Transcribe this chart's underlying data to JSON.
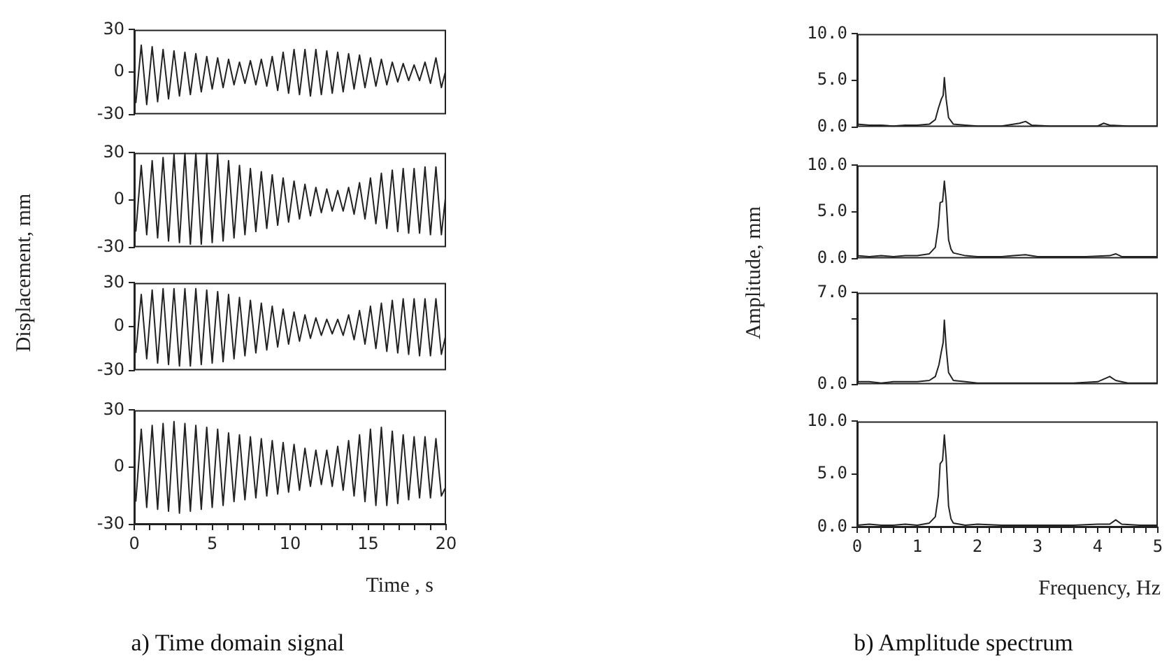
{
  "chart_data": [
    {
      "type": "line",
      "color": "#222222",
      "tick_labels": "y",
      "xlim": [
        0,
        20
      ],
      "ylim": [
        -30,
        30
      ],
      "yticks": [
        -30,
        0,
        30
      ],
      "x": [
        0.1,
        0.45,
        0.8,
        1.15,
        1.5,
        1.85,
        2.2,
        2.55,
        2.9,
        3.25,
        3.6,
        3.95,
        4.3,
        4.65,
        5,
        5.35,
        5.7,
        6.05,
        6.4,
        6.75,
        7.1,
        7.45,
        7.8,
        8.15,
        8.5,
        8.85,
        9.2,
        9.55,
        9.9,
        10.25,
        10.6,
        10.95,
        11.3,
        11.65,
        12,
        12.35,
        12.7,
        13.05,
        13.4,
        13.75,
        14.1,
        14.45,
        14.8,
        15.15,
        15.5,
        15.85,
        16.2,
        16.55,
        16.9,
        17.25,
        17.6,
        17.95,
        18.3,
        18.65,
        19,
        19.35,
        19.7,
        20
      ],
      "values": [
        -22,
        19,
        -23,
        18,
        -21,
        16,
        -19,
        15,
        -17,
        14,
        -16,
        13,
        -14,
        11,
        -12,
        10,
        -11,
        9,
        -9,
        7,
        -8,
        8,
        -9,
        9,
        -10,
        11,
        -13,
        14,
        -15,
        16,
        -16,
        16,
        -17,
        16,
        -16,
        15,
        -15,
        14,
        -14,
        13,
        -12,
        12,
        -11,
        10,
        -10,
        9,
        -9,
        7,
        -7,
        6,
        -6,
        5,
        -6,
        7,
        -8,
        10,
        -11,
        2
      ]
    },
    {
      "type": "line",
      "color": "#222222",
      "tick_labels": "y",
      "xlim": [
        0,
        20
      ],
      "ylim": [
        -30,
        30
      ],
      "yticks": [
        -30,
        0,
        30
      ],
      "ylabel": "Displacement, mm",
      "x": [
        0.1,
        0.45,
        0.8,
        1.15,
        1.5,
        1.85,
        2.2,
        2.55,
        2.9,
        3.25,
        3.6,
        3.95,
        4.3,
        4.65,
        5,
        5.35,
        5.7,
        6.05,
        6.4,
        6.75,
        7.1,
        7.45,
        7.8,
        8.15,
        8.5,
        8.85,
        9.2,
        9.55,
        9.9,
        10.25,
        10.6,
        10.95,
        11.3,
        11.65,
        12,
        12.35,
        12.7,
        13.05,
        13.4,
        13.75,
        14.1,
        14.45,
        14.8,
        15.15,
        15.5,
        15.85,
        16.2,
        16.55,
        16.9,
        17.25,
        17.6,
        17.95,
        18.3,
        18.65,
        19,
        19.35,
        19.7,
        20
      ],
      "values": [
        -20,
        22,
        -22,
        25,
        -24,
        27,
        -26,
        29,
        -27,
        30,
        -28,
        30,
        -28,
        30,
        -27,
        29,
        -26,
        25,
        -24,
        22,
        -22,
        20,
        -20,
        18,
        -18,
        16,
        -16,
        14,
        -14,
        12,
        -12,
        10,
        -10,
        8,
        -8,
        7,
        -7,
        6,
        -7,
        8,
        -9,
        11,
        -12,
        14,
        -15,
        17,
        -18,
        19,
        -20,
        20,
        -21,
        20,
        -21,
        21,
        -22,
        21,
        -22,
        5
      ]
    },
    {
      "type": "line",
      "color": "#222222",
      "tick_labels": "y",
      "xlim": [
        0,
        20
      ],
      "ylim": [
        -30,
        30
      ],
      "yticks": [
        -30,
        0,
        30
      ],
      "x": [
        0.1,
        0.45,
        0.8,
        1.15,
        1.5,
        1.85,
        2.2,
        2.55,
        2.9,
        3.25,
        3.6,
        3.95,
        4.3,
        4.65,
        5,
        5.35,
        5.7,
        6.05,
        6.4,
        6.75,
        7.1,
        7.45,
        7.8,
        8.15,
        8.5,
        8.85,
        9.2,
        9.55,
        9.9,
        10.25,
        10.6,
        10.95,
        11.3,
        11.65,
        12,
        12.35,
        12.7,
        13.05,
        13.4,
        13.75,
        14.1,
        14.45,
        14.8,
        15.15,
        15.5,
        15.85,
        16.2,
        16.55,
        16.9,
        17.25,
        17.6,
        17.95,
        18.3,
        18.65,
        19,
        19.35,
        19.7,
        20
      ],
      "values": [
        -18,
        22,
        -22,
        25,
        -25,
        26,
        -26,
        26,
        -27,
        26,
        -27,
        26,
        -26,
        25,
        -25,
        24,
        -24,
        22,
        -22,
        20,
        -20,
        18,
        -18,
        16,
        -16,
        14,
        -14,
        12,
        -12,
        10,
        -10,
        8,
        -8,
        6,
        -6,
        5,
        -5,
        5,
        -6,
        8,
        -9,
        11,
        -12,
        14,
        -15,
        16,
        -17,
        18,
        -18,
        19,
        -19,
        19,
        -20,
        19,
        -20,
        19,
        -19,
        -5
      ]
    },
    {
      "type": "line",
      "color": "#222222",
      "xlim": [
        0,
        20
      ],
      "ylim": [
        -30,
        30
      ],
      "yticks": [
        -30,
        0,
        30
      ],
      "xlabel": "Time , s",
      "annotations": [
        "a) Time domain signal"
      ],
      "xticks": [
        0,
        {
          "value": 1,
          "label": null
        },
        {
          "value": 2,
          "label": null
        },
        {
          "value": 3,
          "label": null
        },
        {
          "value": 4,
          "label": null
        },
        5,
        {
          "value": 6,
          "label": null
        },
        {
          "value": 7,
          "label": null
        },
        {
          "value": 8,
          "label": null
        },
        {
          "value": 9,
          "label": null
        },
        10,
        {
          "value": 11,
          "label": null
        },
        {
          "value": 12,
          "label": null
        },
        {
          "value": 13,
          "label": null
        },
        {
          "value": 14,
          "label": null
        },
        15,
        {
          "value": 16,
          "label": null
        },
        {
          "value": 17,
          "label": null
        },
        {
          "value": 18,
          "label": null
        },
        {
          "value": 19,
          "label": null
        },
        20
      ],
      "x": [
        0.1,
        0.45,
        0.8,
        1.15,
        1.5,
        1.85,
        2.2,
        2.55,
        2.9,
        3.25,
        3.6,
        3.95,
        4.3,
        4.65,
        5,
        5.35,
        5.7,
        6.05,
        6.4,
        6.75,
        7.1,
        7.45,
        7.8,
        8.15,
        8.5,
        8.85,
        9.2,
        9.55,
        9.9,
        10.25,
        10.6,
        10.95,
        11.3,
        11.65,
        12,
        12.35,
        12.7,
        13.05,
        13.4,
        13.75,
        14.1,
        14.45,
        14.8,
        15.15,
        15.5,
        15.85,
        16.2,
        16.55,
        16.9,
        17.25,
        17.6,
        17.95,
        18.3,
        18.65,
        19,
        19.35,
        19.7,
        20
      ],
      "values": [
        -18,
        20,
        -21,
        22,
        -22,
        23,
        -23,
        24,
        -24,
        23,
        -23,
        22,
        -22,
        21,
        -21,
        20,
        -20,
        18,
        -18,
        17,
        -17,
        16,
        -16,
        15,
        -15,
        14,
        -14,
        13,
        -13,
        12,
        -12,
        10,
        -10,
        9,
        -9,
        9,
        -10,
        11,
        -12,
        14,
        -15,
        17,
        -18,
        20,
        -20,
        21,
        -20,
        19,
        -19,
        17,
        -17,
        16,
        -16,
        16,
        -16,
        15,
        -15,
        -10
      ]
    },
    {
      "type": "line",
      "color": "#222222",
      "tick_labels": "y",
      "xlim": [
        0,
        5
      ],
      "ylim": [
        0,
        10
      ],
      "yticks": [
        {
          "value": 0,
          "label": "0.0"
        },
        {
          "value": 5,
          "label": "5.0"
        },
        {
          "value": 10,
          "label": "10.0"
        }
      ],
      "x": [
        0,
        0.2,
        0.4,
        0.6,
        0.8,
        1,
        1.2,
        1.3,
        1.35,
        1.4,
        1.43,
        1.45,
        1.48,
        1.52,
        1.6,
        1.8,
        2,
        2.4,
        2.7,
        2.8,
        2.9,
        3.2,
        3.6,
        4,
        4.1,
        4.2,
        4.5,
        5
      ],
      "values": [
        0.3,
        0.2,
        0.2,
        0.1,
        0.2,
        0.2,
        0.3,
        0.8,
        2,
        3,
        3.4,
        5.3,
        3,
        1,
        0.3,
        0.2,
        0.1,
        0.1,
        0.4,
        0.6,
        0.2,
        0.1,
        0.1,
        0.1,
        0.4,
        0.2,
        0.1,
        0.1
      ]
    },
    {
      "type": "line",
      "color": "#222222",
      "tick_labels": "y",
      "xlim": [
        0,
        5
      ],
      "ylim": [
        0,
        10
      ],
      "yticks": [
        {
          "value": 0,
          "label": "0.0"
        },
        {
          "value": 5,
          "label": "5.0"
        },
        {
          "value": 10,
          "label": "10.0"
        }
      ],
      "ylabel": "Amplitude, mm",
      "x": [
        0,
        0.2,
        0.4,
        0.6,
        0.8,
        1,
        1.2,
        1.3,
        1.35,
        1.38,
        1.42,
        1.45,
        1.48,
        1.52,
        1.56,
        1.6,
        1.8,
        2,
        2.4,
        2.6,
        2.8,
        3,
        3.4,
        3.8,
        4.2,
        4.3,
        4.4,
        4.7,
        5
      ],
      "values": [
        0.3,
        0.2,
        0.3,
        0.2,
        0.3,
        0.3,
        0.5,
        1.2,
        3.5,
        6,
        6.1,
        8.3,
        6.2,
        2,
        1,
        0.6,
        0.3,
        0.2,
        0.2,
        0.3,
        0.4,
        0.2,
        0.2,
        0.2,
        0.3,
        0.5,
        0.2,
        0.2,
        0.2
      ]
    },
    {
      "type": "line",
      "color": "#222222",
      "tick_labels": "y",
      "xlim": [
        0,
        5
      ],
      "ylim": [
        0,
        7
      ],
      "yticks": [
        {
          "value": 0,
          "label": "0.0"
        },
        {
          "value": 5,
          "label": null
        },
        {
          "value": 7,
          "label": "7.0"
        }
      ],
      "x": [
        0,
        0.2,
        0.4,
        0.6,
        0.8,
        1,
        1.2,
        1.3,
        1.36,
        1.4,
        1.43,
        1.45,
        1.48,
        1.52,
        1.6,
        1.8,
        2,
        2.4,
        2.8,
        3.2,
        3.6,
        4,
        4.1,
        4.2,
        4.3,
        4.5,
        5
      ],
      "values": [
        0.2,
        0.2,
        0.1,
        0.2,
        0.2,
        0.2,
        0.3,
        0.6,
        1.5,
        2.5,
        3.2,
        4.9,
        2.8,
        0.9,
        0.3,
        0.2,
        0.1,
        0.1,
        0.1,
        0.1,
        0.1,
        0.2,
        0.4,
        0.6,
        0.3,
        0.1,
        0.1
      ]
    },
    {
      "type": "line",
      "color": "#222222",
      "xlim": [
        0,
        5
      ],
      "ylim": [
        0,
        10
      ],
      "yticks": [
        {
          "value": 0,
          "label": "0.0"
        },
        {
          "value": 5,
          "label": "5.0"
        },
        {
          "value": 10,
          "label": "10.0"
        }
      ],
      "xlabel": "Frequency, Hz",
      "annotations": [
        "b) Amplitude spectrum"
      ],
      "xticks": [
        0,
        {
          "value": 0.2,
          "label": null
        },
        {
          "value": 0.4,
          "label": null
        },
        {
          "value": 0.6,
          "label": null
        },
        {
          "value": 0.8,
          "label": null
        },
        1,
        {
          "value": 1.2,
          "label": null
        },
        {
          "value": 1.4,
          "label": null
        },
        {
          "value": 1.6,
          "label": null
        },
        {
          "value": 1.8,
          "label": null
        },
        2,
        {
          "value": 2.2,
          "label": null
        },
        {
          "value": 2.4,
          "label": null
        },
        {
          "value": 2.6,
          "label": null
        },
        {
          "value": 2.8,
          "label": null
        },
        3,
        {
          "value": 3.2,
          "label": null
        },
        {
          "value": 3.4,
          "label": null
        },
        {
          "value": 3.6,
          "label": null
        },
        {
          "value": 3.8,
          "label": null
        },
        4,
        {
          "value": 4.2,
          "label": null
        },
        {
          "value": 4.4,
          "label": null
        },
        {
          "value": 4.6,
          "label": null
        },
        {
          "value": 4.8,
          "label": null
        },
        5
      ],
      "x": [
        0,
        0.2,
        0.4,
        0.6,
        0.8,
        1,
        1.2,
        1.3,
        1.35,
        1.38,
        1.42,
        1.45,
        1.48,
        1.52,
        1.56,
        1.6,
        1.8,
        2,
        2.4,
        2.8,
        3.2,
        3.6,
        4,
        4.2,
        4.3,
        4.4,
        4.7,
        5
      ],
      "values": [
        0.2,
        0.3,
        0.2,
        0.2,
        0.3,
        0.2,
        0.4,
        1,
        3,
        6,
        6.3,
        8.7,
        6.5,
        2,
        0.8,
        0.4,
        0.2,
        0.3,
        0.2,
        0.2,
        0.2,
        0.2,
        0.3,
        0.3,
        0.7,
        0.3,
        0.2,
        0.2
      ]
    }
  ]
}
